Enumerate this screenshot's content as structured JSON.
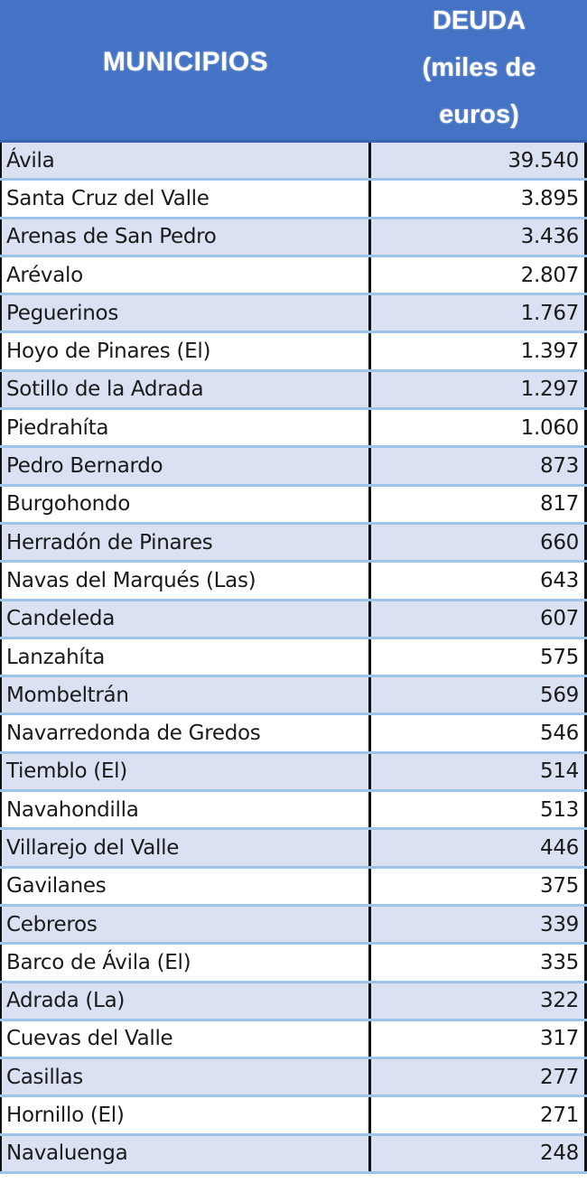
{
  "header": {
    "municipios": "MUNICIPIOS",
    "deuda_line1": "DEUDA",
    "deuda_line2": "(miles de",
    "deuda_line3": "euros)"
  },
  "colors": {
    "header_bg": "#4472c4",
    "row_shade": "#d9e1f2",
    "row_plain": "#ffffff",
    "row_separator": "#9dc3e6",
    "divider": "#111111"
  },
  "rows": [
    {
      "municipio": "Ávila",
      "deuda": "39.540"
    },
    {
      "municipio": "Santa Cruz del Valle",
      "deuda": "3.895"
    },
    {
      "municipio": "Arenas de San Pedro",
      "deuda": "3.436"
    },
    {
      "municipio": "Arévalo",
      "deuda": "2.807"
    },
    {
      "municipio": "Peguerinos",
      "deuda": "1.767"
    },
    {
      "municipio": "Hoyo de Pinares (El)",
      "deuda": "1.397"
    },
    {
      "municipio": "Sotillo de la Adrada",
      "deuda": "1.297"
    },
    {
      "municipio": "Piedrahíta",
      "deuda": "1.060"
    },
    {
      "municipio": "Pedro Bernardo",
      "deuda": "873"
    },
    {
      "municipio": "Burgohondo",
      "deuda": "817"
    },
    {
      "municipio": "Herradón de Pinares",
      "deuda": "660"
    },
    {
      "municipio": "Navas del Marqués (Las)",
      "deuda": "643"
    },
    {
      "municipio": "Candeleda",
      "deuda": "607"
    },
    {
      "municipio": "Lanzahíta",
      "deuda": "575"
    },
    {
      "municipio": "Mombeltrán",
      "deuda": "569"
    },
    {
      "municipio": "Navarredonda de Gredos",
      "deuda": "546"
    },
    {
      "municipio": "Tiemblo (El)",
      "deuda": "514"
    },
    {
      "municipio": "Navahondilla",
      "deuda": "513"
    },
    {
      "municipio": "Villarejo del Valle",
      "deuda": "446"
    },
    {
      "municipio": "Gavilanes",
      "deuda": "375"
    },
    {
      "municipio": "Cebreros",
      "deuda": "339"
    },
    {
      "municipio": "Barco de Ávila (El)",
      "deuda": "335"
    },
    {
      "municipio": "Adrada (La)",
      "deuda": "322"
    },
    {
      "municipio": "Cuevas del Valle",
      "deuda": "317"
    },
    {
      "municipio": "Casillas",
      "deuda": "277"
    },
    {
      "municipio": "Hornillo (El)",
      "deuda": "271"
    },
    {
      "municipio": "Navaluenga",
      "deuda": "248"
    }
  ]
}
